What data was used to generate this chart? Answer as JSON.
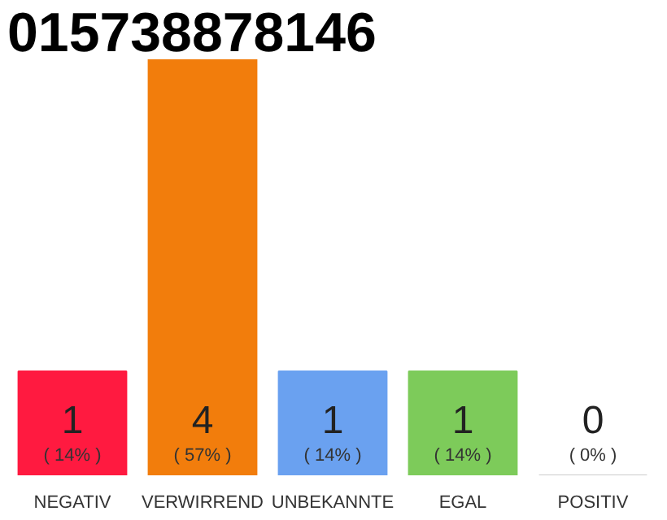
{
  "chart_data": {
    "type": "bar",
    "title": "015738878146",
    "categories": [
      "NEGATIV",
      "VERWIRREND",
      "UNBEKANNTE",
      "EGAL",
      "POSITIV"
    ],
    "values": [
      1,
      4,
      1,
      1,
      0
    ],
    "colors": [
      "#ff1a40",
      "#f27d0c",
      "#6aa1f0",
      "#7dcb5a",
      "#cccccc"
    ],
    "tick_labels": "x",
    "data_labels": true,
    "annotations": [
      "( 14% )",
      "( 57% )",
      "( 14% )",
      "( 14% )",
      "( 0% )"
    ]
  }
}
